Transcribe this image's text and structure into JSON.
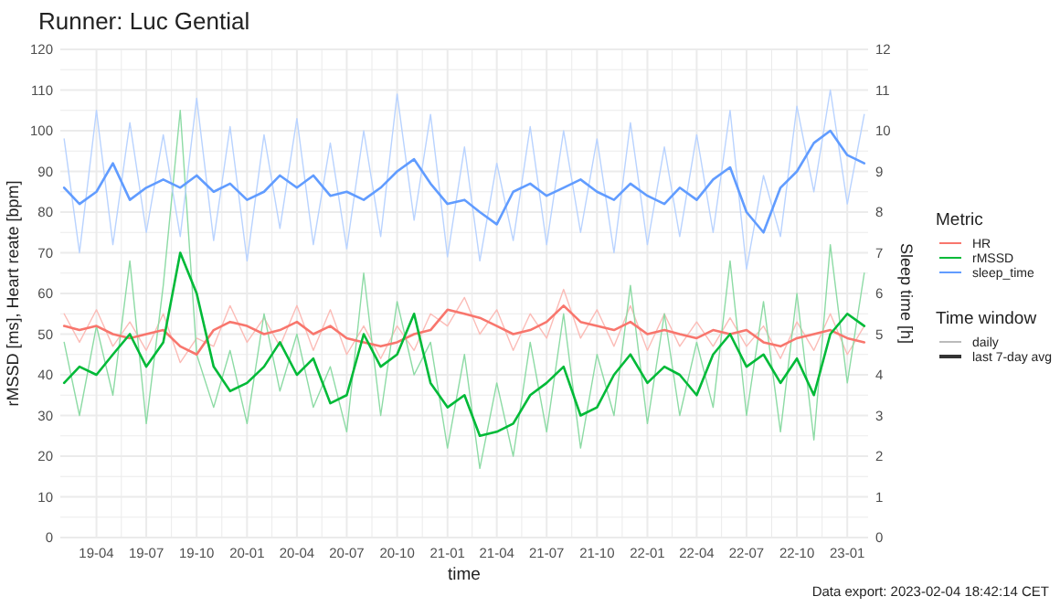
{
  "chart_data": {
    "type": "line",
    "title": "Runner: Luc Gential",
    "xlabel": "time",
    "ylabel": "rMSSD [ms], Heart reate [bpm]",
    "y2label": "Sleep time [h]",
    "legend_title": "Metric",
    "annotations": [
      "Data export: 2023-02-04 18:42:14 CET",
      "Time window",
      "daily",
      "last 7-day avg"
    ],
    "x": [
      "2019-02-01",
      "2019-03-01",
      "2019-04-01",
      "2019-05-01",
      "2019-06-01",
      "2019-07-01",
      "2019-08-01",
      "2019-09-01",
      "2019-10-01",
      "2019-11-01",
      "2019-12-01",
      "2020-01-01",
      "2020-02-01",
      "2020-03-01",
      "2020-04-01",
      "2020-05-01",
      "2020-06-01",
      "2020-07-01",
      "2020-08-01",
      "2020-09-01",
      "2020-10-01",
      "2020-11-01",
      "2020-12-01",
      "2021-01-01",
      "2021-02-01",
      "2021-03-01",
      "2021-04-01",
      "2021-05-01",
      "2021-06-01",
      "2021-07-01",
      "2021-08-01",
      "2021-09-01",
      "2021-10-01",
      "2021-11-01",
      "2021-12-01",
      "2022-01-01",
      "2022-02-01",
      "2022-03-01",
      "2022-04-01",
      "2022-05-01",
      "2022-06-01",
      "2022-07-01",
      "2022-08-01",
      "2022-09-01",
      "2022-10-01",
      "2022-11-01",
      "2022-12-01",
      "2023-01-01",
      "2023-02-01"
    ],
    "xlim": [
      "2019-01-25",
      "2023-02-08"
    ],
    "xticks": [
      {
        "value": "2019-04-01",
        "label": "19-04"
      },
      {
        "value": "2019-07-01",
        "label": "19-07"
      },
      {
        "value": "2019-10-01",
        "label": "19-10"
      },
      {
        "value": "2020-01-01",
        "label": "20-01"
      },
      {
        "value": "2020-04-01",
        "label": "20-04"
      },
      {
        "value": "2020-07-01",
        "label": "20-07"
      },
      {
        "value": "2020-10-01",
        "label": "20-10"
      },
      {
        "value": "2021-01-01",
        "label": "21-01"
      },
      {
        "value": "2021-04-01",
        "label": "21-04"
      },
      {
        "value": "2021-07-01",
        "label": "21-07"
      },
      {
        "value": "2021-10-01",
        "label": "21-10"
      },
      {
        "value": "2022-01-01",
        "label": "22-01"
      },
      {
        "value": "2022-04-01",
        "label": "22-04"
      },
      {
        "value": "2022-07-01",
        "label": "22-07"
      },
      {
        "value": "2022-10-01",
        "label": "22-10"
      },
      {
        "value": "2023-01-01",
        "label": "23-01"
      }
    ],
    "ylim": [
      0,
      120
    ],
    "yticks": [
      0,
      10,
      20,
      30,
      40,
      50,
      60,
      70,
      80,
      90,
      100,
      110,
      120
    ],
    "y2lim": [
      0,
      12
    ],
    "y2ticks": [
      0,
      1,
      2,
      3,
      4,
      5,
      6,
      7,
      8,
      9,
      10,
      11,
      12
    ],
    "grid": true,
    "legend": "right",
    "series": [
      {
        "color": "#fbbcb7",
        "values": [
          55,
          48,
          56,
          47,
          53,
          46,
          55,
          43,
          49,
          47,
          57,
          48,
          54,
          47,
          57,
          46,
          56,
          45,
          52,
          44,
          52,
          46,
          55,
          52,
          59,
          50,
          56,
          46,
          55,
          49,
          61,
          49,
          56,
          47,
          57,
          46,
          55,
          47,
          53,
          47,
          54,
          47,
          52,
          44,
          53,
          46,
          55,
          45,
          52
        ]
      },
      {
        "color": "#8ddba5",
        "values": [
          48,
          30,
          52,
          35,
          68,
          28,
          62,
          105,
          45,
          32,
          46,
          28,
          55,
          36,
          50,
          32,
          42,
          26,
          65,
          30,
          58,
          40,
          48,
          22,
          45,
          17,
          38,
          20,
          48,
          26,
          55,
          22,
          45,
          30,
          62,
          28,
          55,
          30,
          48,
          32,
          68,
          30,
          58,
          26,
          60,
          24,
          72,
          38,
          65
        ]
      },
      {
        "color": "#b9d3ff",
        "axis": "y2",
        "values": [
          9.8,
          7.0,
          10.5,
          7.2,
          10.2,
          7.5,
          9.9,
          7.4,
          10.8,
          7.3,
          10.1,
          6.8,
          9.9,
          7.6,
          10.3,
          7.2,
          9.7,
          7.1,
          10.0,
          7.4,
          10.9,
          7.8,
          10.4,
          6.9,
          9.6,
          6.8,
          9.2,
          7.3,
          10.1,
          7.2,
          10.0,
          7.5,
          9.8,
          7.0,
          10.2,
          7.2,
          9.6,
          7.4,
          9.9,
          7.5,
          10.5,
          6.6,
          8.9,
          7.4,
          10.6,
          8.5,
          11.0,
          8.2,
          10.4
        ]
      },
      {
        "name": "HR",
        "color": "#f8766d",
        "values": [
          52,
          51,
          52,
          50,
          49,
          50,
          51,
          47,
          45,
          51,
          53,
          52,
          50,
          51,
          53,
          50,
          52,
          49,
          48,
          47,
          48,
          50,
          51,
          56,
          55,
          54,
          52,
          50,
          51,
          53,
          57,
          53,
          52,
          51,
          53,
          50,
          51,
          50,
          49,
          51,
          50,
          51,
          48,
          47,
          49,
          50,
          51,
          49,
          48
        ]
      },
      {
        "name": "rMSSD",
        "color": "#00ba38",
        "values": [
          38,
          42,
          40,
          45,
          50,
          42,
          48,
          70,
          60,
          42,
          36,
          38,
          42,
          48,
          40,
          44,
          33,
          35,
          50,
          42,
          45,
          55,
          38,
          32,
          35,
          25,
          26,
          28,
          35,
          38,
          42,
          30,
          32,
          40,
          45,
          38,
          42,
          40,
          35,
          45,
          50,
          42,
          45,
          38,
          44,
          35,
          50,
          55,
          52
        ]
      },
      {
        "name": "sleep_time",
        "color": "#619cff",
        "axis": "y2",
        "values": [
          8.6,
          8.2,
          8.5,
          9.2,
          8.3,
          8.6,
          8.8,
          8.6,
          8.9,
          8.5,
          8.7,
          8.3,
          8.5,
          8.9,
          8.6,
          8.9,
          8.4,
          8.5,
          8.3,
          8.6,
          9.0,
          9.3,
          8.7,
          8.2,
          8.3,
          8.0,
          7.7,
          8.5,
          8.7,
          8.4,
          8.6,
          8.8,
          8.5,
          8.3,
          8.7,
          8.4,
          8.2,
          8.6,
          8.3,
          8.8,
          9.1,
          8.0,
          7.5,
          8.6,
          9.0,
          9.7,
          10.0,
          9.4,
          9.2
        ]
      }
    ]
  }
}
